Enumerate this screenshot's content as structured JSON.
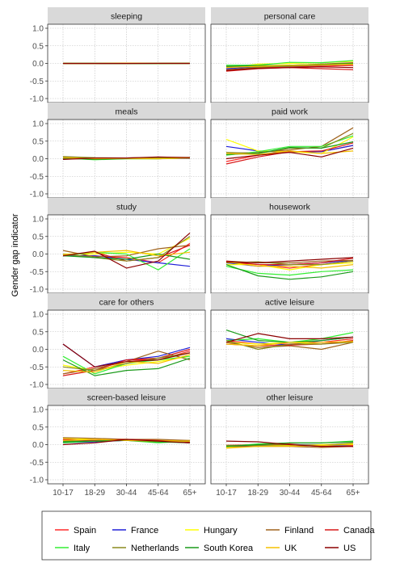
{
  "chart_data": {
    "type": "line",
    "ylabel": "Gender gap indicator",
    "x_categories": [
      "10-17",
      "18-29",
      "30-44",
      "45-64",
      "65+"
    ],
    "y_ticks": [
      "1.0",
      "0.5",
      "0.0",
      "-0.5",
      "-1.0"
    ],
    "ylim": [
      -1.0,
      1.0
    ],
    "grid": true,
    "legend_position": "bottom",
    "series_meta": [
      {
        "name": "Spain",
        "color": "#ff2a2a"
      },
      {
        "name": "France",
        "color": "#2020d8"
      },
      {
        "name": "Hungary",
        "color": "#ffff00"
      },
      {
        "name": "Finland",
        "color": "#a0641e"
      },
      {
        "name": "Canada",
        "color": "#d81818"
      },
      {
        "name": "Italy",
        "color": "#33ee33"
      },
      {
        "name": "Netherlands",
        "color": "#8a8a1e"
      },
      {
        "name": "South Korea",
        "color": "#1a9a1a"
      },
      {
        "name": "UK",
        "color": "#f5c000"
      },
      {
        "name": "US",
        "color": "#8b0000"
      }
    ],
    "panels": [
      {
        "title": "sleeping",
        "series": {
          "Spain": [
            0.0,
            -0.01,
            0.0,
            0.0,
            0.0
          ],
          "France": [
            0.0,
            0.0,
            0.0,
            0.0,
            0.0
          ],
          "Hungary": [
            0.0,
            0.0,
            0.0,
            0.0,
            0.01
          ],
          "Finland": [
            0.0,
            -0.01,
            -0.01,
            0.0,
            0.01
          ],
          "Canada": [
            -0.01,
            -0.01,
            0.0,
            0.0,
            0.0
          ],
          "Italy": [
            0.0,
            0.0,
            0.0,
            -0.01,
            0.0
          ],
          "Netherlands": [
            0.0,
            0.0,
            0.0,
            0.0,
            0.01
          ],
          "South Korea": [
            0.0,
            0.0,
            0.0,
            0.0,
            0.0
          ],
          "UK": [
            0.0,
            0.0,
            0.01,
            0.0,
            0.0
          ],
          "US": [
            0.0,
            0.0,
            0.0,
            0.0,
            0.0
          ]
        }
      },
      {
        "title": "personal care",
        "series": {
          "Spain": [
            -0.2,
            -0.12,
            -0.1,
            -0.08,
            -0.06
          ],
          "France": [
            -0.15,
            -0.1,
            -0.08,
            -0.05,
            -0.02
          ],
          "Hungary": [
            -0.12,
            -0.02,
            0.0,
            0.02,
            0.06
          ],
          "Finland": [
            -0.18,
            -0.12,
            -0.05,
            -0.02,
            0.02
          ],
          "Canada": [
            -0.22,
            -0.15,
            -0.12,
            -0.15,
            -0.18
          ],
          "Italy": [
            -0.05,
            -0.05,
            0.03,
            0.02,
            0.08
          ],
          "Netherlands": [
            -0.1,
            -0.1,
            -0.08,
            -0.05,
            -0.03
          ],
          "South Korea": [
            -0.08,
            -0.06,
            -0.05,
            -0.03,
            0.0
          ],
          "UK": [
            -0.12,
            -0.08,
            -0.05,
            -0.04,
            -0.02
          ],
          "US": [
            -0.2,
            -0.14,
            -0.12,
            -0.1,
            -0.12
          ]
        }
      },
      {
        "title": "meals",
        "series": {
          "Spain": [
            0.02,
            0.0,
            0.02,
            0.02,
            0.02
          ],
          "France": [
            0.0,
            0.0,
            0.01,
            0.0,
            0.01
          ],
          "Hungary": [
            0.0,
            0.02,
            0.0,
            0.0,
            0.02
          ],
          "Finland": [
            0.05,
            0.01,
            0.02,
            0.04,
            0.04
          ],
          "Canada": [
            0.0,
            0.0,
            0.02,
            0.03,
            0.02
          ],
          "Italy": [
            0.02,
            -0.03,
            0.0,
            0.0,
            0.03
          ],
          "Netherlands": [
            0.06,
            0.03,
            0.02,
            0.03,
            0.03
          ],
          "South Korea": [
            0.02,
            -0.02,
            0.0,
            0.0,
            0.02
          ],
          "UK": [
            0.03,
            0.0,
            0.01,
            0.0,
            0.02
          ],
          "US": [
            -0.02,
            0.02,
            0.02,
            0.05,
            0.03
          ]
        }
      },
      {
        "title": "paid work",
        "series": {
          "Spain": [
            -0.08,
            0.1,
            0.2,
            0.2,
            0.38
          ],
          "France": [
            0.35,
            0.22,
            0.18,
            0.2,
            0.38
          ],
          "Hungary": [
            0.55,
            0.22,
            0.2,
            0.15,
            0.62
          ],
          "Finland": [
            0.15,
            0.18,
            0.25,
            0.35,
            0.88
          ],
          "Canada": [
            -0.15,
            0.05,
            0.2,
            0.22,
            0.45
          ],
          "Italy": [
            0.1,
            0.2,
            0.35,
            0.35,
            0.65
          ],
          "Netherlands": [
            0.18,
            0.15,
            0.3,
            0.3,
            0.72
          ],
          "South Korea": [
            0.12,
            0.15,
            0.32,
            0.3,
            0.48
          ],
          "UK": [
            0.15,
            0.12,
            0.22,
            0.15,
            0.22
          ],
          "US": [
            0.0,
            0.1,
            0.18,
            0.05,
            0.3
          ]
        }
      },
      {
        "title": "study",
        "series": {
          "Spain": [
            -0.05,
            -0.05,
            -0.1,
            -0.25,
            0.3
          ],
          "France": [
            -0.05,
            -0.05,
            -0.15,
            -0.25,
            -0.35
          ],
          "Hungary": [
            0.0,
            0.0,
            0.05,
            0.0,
            0.45
          ],
          "Finland": [
            0.1,
            -0.08,
            -0.05,
            0.15,
            0.25
          ],
          "Canada": [
            -0.05,
            0.05,
            -0.2,
            -0.1,
            0.25
          ],
          "Italy": [
            -0.05,
            0.05,
            0.0,
            -0.45,
            0.15
          ],
          "Netherlands": [
            0.0,
            -0.1,
            -0.2,
            -0.1,
            0.5
          ],
          "South Korea": [
            -0.05,
            -0.1,
            -0.15,
            0.0,
            -0.15
          ],
          "UK": [
            -0.02,
            0.05,
            0.1,
            -0.05,
            0.05
          ],
          "US": [
            -0.05,
            0.08,
            -0.4,
            -0.2,
            0.6
          ]
        }
      },
      {
        "title": "housework",
        "series": {
          "Spain": [
            -0.25,
            -0.3,
            -0.4,
            -0.3,
            -0.2
          ],
          "France": [
            -0.25,
            -0.35,
            -0.3,
            -0.25,
            -0.18
          ],
          "Hungary": [
            -0.3,
            -0.3,
            -0.45,
            -0.3,
            -0.25
          ],
          "Finland": [
            -0.2,
            -0.25,
            -0.25,
            -0.2,
            -0.18
          ],
          "Canada": [
            -0.2,
            -0.3,
            -0.3,
            -0.25,
            -0.12
          ],
          "Italy": [
            -0.35,
            -0.55,
            -0.6,
            -0.5,
            -0.45
          ],
          "Netherlands": [
            -0.25,
            -0.22,
            -0.3,
            -0.3,
            -0.2
          ],
          "South Korea": [
            -0.3,
            -0.62,
            -0.72,
            -0.65,
            -0.5
          ],
          "UK": [
            -0.22,
            -0.35,
            -0.35,
            -0.4,
            -0.3
          ],
          "US": [
            -0.22,
            -0.25,
            -0.2,
            -0.15,
            -0.1
          ]
        }
      },
      {
        "title": "care for others",
        "series": {
          "Spain": [
            -0.7,
            -0.5,
            -0.3,
            -0.3,
            -0.05
          ],
          "France": [
            0.15,
            -0.5,
            -0.3,
            -0.2,
            0.05
          ],
          "Hungary": [
            -0.45,
            -0.6,
            -0.45,
            -0.35,
            -0.2
          ],
          "Finland": [
            -0.7,
            -0.55,
            -0.35,
            -0.05,
            -0.3
          ],
          "Canada": [
            -0.75,
            -0.6,
            -0.3,
            -0.25,
            0.0
          ],
          "Italy": [
            -0.2,
            -0.7,
            -0.4,
            -0.3,
            -0.2
          ],
          "Netherlands": [
            -0.5,
            -0.6,
            -0.4,
            -0.25,
            -0.1
          ],
          "South Korea": [
            -0.3,
            -0.75,
            -0.6,
            -0.55,
            -0.25
          ],
          "UK": [
            -0.6,
            -0.65,
            -0.35,
            -0.4,
            -0.15
          ],
          "US": [
            0.15,
            -0.5,
            -0.35,
            -0.3,
            -0.1
          ]
        }
      },
      {
        "title": "active leisure",
        "series": {
          "Spain": [
            0.25,
            0.15,
            0.15,
            0.2,
            0.3
          ],
          "France": [
            0.3,
            0.2,
            0.12,
            0.25,
            0.35
          ],
          "Hungary": [
            0.2,
            0.15,
            0.2,
            0.15,
            0.25
          ],
          "Finland": [
            0.2,
            0.05,
            0.1,
            0.0,
            0.2
          ],
          "Canada": [
            0.15,
            0.1,
            0.12,
            0.15,
            0.25
          ],
          "Italy": [
            0.25,
            0.3,
            0.2,
            0.3,
            0.48
          ],
          "Netherlands": [
            0.25,
            0.0,
            0.15,
            0.15,
            0.2
          ],
          "South Korea": [
            0.55,
            0.25,
            0.2,
            0.25,
            0.35
          ],
          "UK": [
            0.15,
            0.1,
            0.2,
            0.2,
            0.22
          ],
          "US": [
            0.2,
            0.45,
            0.3,
            0.3,
            0.35
          ]
        }
      },
      {
        "title": "screen-based leisure",
        "series": {
          "Spain": [
            0.15,
            0.12,
            0.12,
            0.1,
            0.08
          ],
          "France": [
            0.05,
            0.08,
            0.12,
            0.1,
            0.05
          ],
          "Hungary": [
            0.18,
            0.15,
            0.15,
            0.12,
            0.12
          ],
          "Finland": [
            0.2,
            0.18,
            0.15,
            0.15,
            0.12
          ],
          "Canada": [
            0.15,
            0.12,
            0.15,
            0.12,
            0.08
          ],
          "Italy": [
            0.05,
            0.1,
            0.12,
            0.05,
            0.1
          ],
          "Netherlands": [
            0.1,
            0.1,
            0.12,
            0.08,
            0.1
          ],
          "South Korea": [
            0.08,
            0.1,
            0.12,
            0.08,
            0.05
          ],
          "UK": [
            0.12,
            0.15,
            0.12,
            0.1,
            0.1
          ],
          "US": [
            0.0,
            0.05,
            0.15,
            0.1,
            0.05
          ]
        }
      },
      {
        "title": "other leisure",
        "series": {
          "Spain": [
            -0.05,
            0.0,
            0.02,
            -0.05,
            -0.02
          ],
          "France": [
            -0.05,
            -0.02,
            0.0,
            0.0,
            -0.05
          ],
          "Hungary": [
            -0.08,
            -0.05,
            -0.02,
            0.0,
            0.02
          ],
          "Finland": [
            -0.05,
            -0.05,
            -0.05,
            -0.08,
            -0.05
          ],
          "Canada": [
            -0.02,
            0.0,
            0.0,
            -0.05,
            -0.05
          ],
          "Italy": [
            -0.05,
            0.02,
            0.05,
            0.05,
            0.1
          ],
          "Netherlands": [
            -0.02,
            -0.02,
            0.0,
            -0.02,
            0.05
          ],
          "South Korea": [
            -0.05,
            0.0,
            0.05,
            0.05,
            0.08
          ],
          "UK": [
            -0.1,
            -0.05,
            -0.05,
            -0.02,
            0.0
          ],
          "US": [
            0.1,
            0.08,
            0.0,
            -0.05,
            -0.05
          ]
        }
      }
    ]
  }
}
